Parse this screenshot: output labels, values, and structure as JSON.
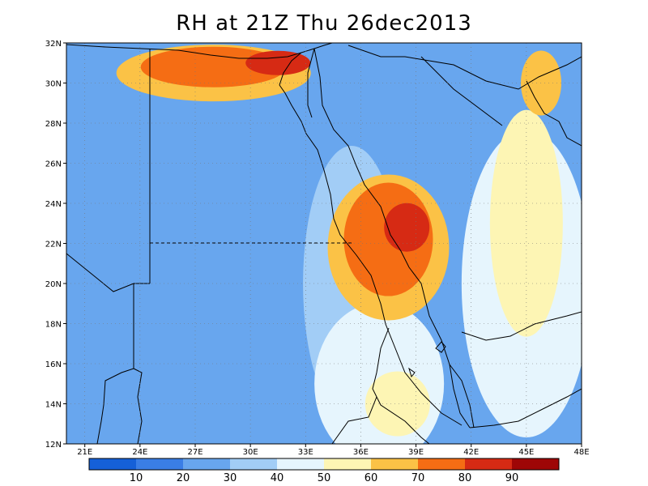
{
  "title": "RH at 21Z Thu 26dec2013",
  "map": {
    "lon_range": [
      20,
      48
    ],
    "lat_range": [
      12,
      32
    ],
    "lat_ticks": [
      "12N",
      "14N",
      "16N",
      "18N",
      "20N",
      "22N",
      "24N",
      "26N",
      "28N",
      "30N",
      "32N"
    ],
    "lon_ticks": [
      "21E",
      "24E",
      "27E",
      "30E",
      "33E",
      "36E",
      "39E",
      "42E",
      "45E",
      "48E"
    ],
    "grid": "dotted"
  },
  "colorbar": {
    "levels": [
      "10",
      "20",
      "30",
      "40",
      "50",
      "60",
      "70",
      "80",
      "90"
    ],
    "colors": [
      "#1560d8",
      "#3a7ee6",
      "#68a6ee",
      "#a2cdf6",
      "#e6f5fd",
      "#fdf5b4",
      "#fbc246",
      "#f56d14",
      "#d62a14",
      "#9e0606"
    ]
  },
  "regions": [
    {
      "level": 2,
      "label": "dry-interior-libya-egypt",
      "rx": 300,
      "ry": 220,
      "lon": 28,
      "lat": 20
    },
    {
      "level": 3,
      "label": "moist-band-nile",
      "rx": 60,
      "ry": 170,
      "lon": 35.5,
      "lat": 20
    },
    {
      "level": 4,
      "label": "moist-sudan",
      "rx": 80,
      "ry": 100,
      "lon": 37,
      "lat": 15
    },
    {
      "level": 4,
      "label": "moist-arabia",
      "rx": 80,
      "ry": 190,
      "lon": 45,
      "lat": 20
    },
    {
      "level": 5,
      "label": "yellow-arabia",
      "rx": 45,
      "ry": 140,
      "lon": 45,
      "lat": 23
    },
    {
      "level": 6,
      "label": "orange-north",
      "rx": 120,
      "ry": 35,
      "lon": 28,
      "lat": 30.5
    },
    {
      "level": 7,
      "label": "red-north",
      "rx": 90,
      "ry": 25,
      "lon": 28,
      "lat": 30.8
    },
    {
      "level": 8,
      "label": "redpeak-north",
      "rx": 40,
      "ry": 15,
      "lon": 31.5,
      "lat": 31
    },
    {
      "level": 6,
      "label": "orange-redsea",
      "rx": 75,
      "ry": 90,
      "lon": 37.5,
      "lat": 21.8
    },
    {
      "level": 7,
      "label": "red-redsea",
      "rx": 55,
      "ry": 70,
      "lon": 37.5,
      "lat": 22.2
    },
    {
      "level": 8,
      "label": "redpeak-redsea",
      "rx": 28,
      "ry": 30,
      "lon": 38.5,
      "lat": 22.8
    },
    {
      "level": 5,
      "label": "yellow-ethiopia",
      "rx": 40,
      "ry": 40,
      "lon": 38,
      "lat": 14
    },
    {
      "level": 6,
      "label": "orange-east",
      "rx": 25,
      "ry": 40,
      "lon": 45.8,
      "lat": 30
    }
  ]
}
